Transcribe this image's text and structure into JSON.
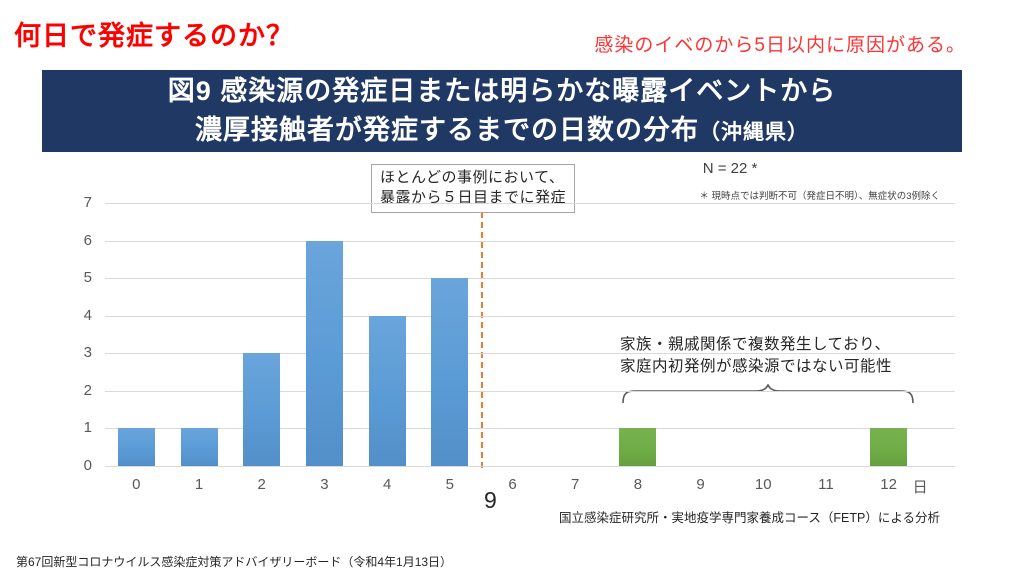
{
  "page": {
    "title": "何日で発症するのか？",
    "subtitle": "感染のイベのから5日以内に原因がある。",
    "page_number": "9",
    "footer": "第67回新型コロナウイルス感染症対策アドバイザリーボード（令和4年1月13日）"
  },
  "figure": {
    "heading_line1": "図9 感染源の発症日または明らかな曝露イベントから",
    "heading_line2": "濃厚接触者が発症するまでの日数の分布",
    "heading_suffix": "（沖縄県）",
    "sample_size": "N = 22 *",
    "sample_note": "＊ 現時点では判断不可（発症日不明）、無症状の3例除く",
    "callout_line1": "ほとんどの事例において、",
    "callout_line2": "暴露から５日目までに発症",
    "family_note_line1": "家族・親戚関係で複数発生しており、",
    "family_note_line2": "家庭内初発例が感染源ではない可能性",
    "source": "国立感染症研究所・実地疫学専門家養成コース（FETP）による分析",
    "x_unit": "日"
  },
  "chart_data": {
    "type": "bar",
    "title": "図9 感染源の発症日または明らかな曝露イベントから濃厚接触者が発症するまでの日数の分布（沖縄県）",
    "categories": [
      "0",
      "1",
      "2",
      "3",
      "4",
      "5",
      "6",
      "7",
      "8",
      "9",
      "10",
      "11",
      "12"
    ],
    "values": [
      1,
      1,
      3,
      6,
      4,
      5,
      0,
      0,
      1,
      0,
      0,
      0,
      1
    ],
    "highlight_indices": [
      8,
      12
    ],
    "bar_color_default": "#5b9bd5",
    "bar_color_highlight": "#70ad47",
    "ylim": [
      0,
      7
    ],
    "ytick_step": 1,
    "grid": true,
    "x_unit": "日",
    "reference_line_x": 5.5,
    "reference_line_color": "#ed7d31"
  },
  "colors": {
    "heading_background": "#1f3864",
    "title_red": "#ff0000",
    "gridline": "#d9d9d9"
  }
}
